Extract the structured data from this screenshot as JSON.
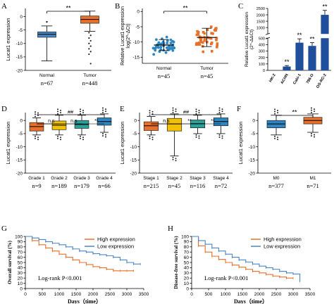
{
  "chart_data": [
    {
      "panel": "A",
      "type": "box",
      "ylabel": "Lucat1 expression",
      "categories": [
        "Normal",
        "Tumor"
      ],
      "n_labels": [
        "n=67",
        "n=448"
      ],
      "yticks": [
        0,
        -5,
        -10,
        -15,
        -20
      ],
      "ylim": [
        -20,
        3
      ],
      "boxes": [
        {
          "min": -16.5,
          "q1": -7.7,
          "median": -6.6,
          "q3": -5.7,
          "max": -3.5,
          "outliers_high": [
            -2.0
          ],
          "outliers_low": []
        },
        {
          "min": -5.5,
          "q1": -2.5,
          "median": -1.1,
          "q3": 0.2,
          "max": 2.0,
          "outliers_high": [],
          "outliers_low": [
            -6,
            -7,
            -8,
            -9,
            -10,
            -11,
            -12,
            -13,
            -14,
            -17.5
          ]
        }
      ],
      "box_colors": [
        "#4a86c5",
        "#e8702a"
      ],
      "significance": "**"
    },
    {
      "panel": "B",
      "type": "scatter",
      "ylabel_line1": "Relative Lucat1 expression",
      "ylabel_line2": "log(2^-ΔCt)",
      "categories": [
        "Normal",
        "Tumor"
      ],
      "n_labels": [
        "n=45",
        "n=45"
      ],
      "yticks": [
        0,
        -5,
        -10,
        -15
      ],
      "ylim": [
        -17,
        1
      ],
      "means": [
        -11.0,
        -8.5
      ],
      "sd": [
        1.8,
        3.0
      ],
      "colors": [
        "#2e86c1",
        "#e8702a"
      ],
      "significance": "**"
    },
    {
      "panel": "C",
      "type": "bar",
      "ylabel_line1": "Relative Lucat1 expression",
      "ylabel_line2": "(2^-ΔΔCt)",
      "categories": [
        "HK-2",
        "ACHN",
        "Caki-1",
        "786-O",
        "OS-RC-2"
      ],
      "values": [
        1,
        60,
        430,
        380,
        2000
      ],
      "errors": [
        0,
        15,
        60,
        50,
        350
      ],
      "yticks": [
        0,
        100,
        200,
        300,
        400,
        500,
        1000,
        1500,
        2000,
        2500
      ],
      "bar_color": "#1f4e9c",
      "marks": [
        "",
        "**",
        "**",
        "**",
        "**"
      ]
    },
    {
      "panel": "D",
      "type": "box",
      "ylabel": "Lucat1 expression",
      "categories": [
        "Grade 1",
        "Grade 2",
        "Grade 3",
        "Grade 4"
      ],
      "n_labels": [
        "n=9",
        "n=189",
        "n=179",
        "n=66"
      ],
      "yticks": [
        0,
        -5,
        -10,
        -15,
        -20
      ],
      "ylim": [
        -20,
        3
      ],
      "boxes": [
        {
          "min": -5.5,
          "q1": -4,
          "median": -2.3,
          "q3": -0.8,
          "max": 1.0
        },
        {
          "min": -5.5,
          "q1": -3.5,
          "median": -1.8,
          "q3": -0.2,
          "max": 2.0
        },
        {
          "min": -5.5,
          "q1": -3.0,
          "median": -1.5,
          "q3": 0,
          "max": 2.0
        },
        {
          "min": -4.5,
          "q1": -1.8,
          "median": -0.4,
          "q3": 1.0,
          "max": 2.5
        }
      ],
      "box_colors": [
        "#e8702a",
        "#f2c200",
        "#2aa198",
        "#2e86c1"
      ],
      "bracket_top": "##",
      "pair_labels": [
        "n.s",
        "n.s",
        "**"
      ]
    },
    {
      "panel": "E",
      "type": "box",
      "ylabel": "Lucat1 expression",
      "categories": [
        "Stage 1",
        "Stage 2",
        "Stage 3",
        "Stage 4"
      ],
      "n_labels": [
        "n=215",
        "n=45",
        "n=116",
        "n=72"
      ],
      "yticks": [
        0,
        -5,
        -10,
        -15,
        -20
      ],
      "ylim": [
        -20,
        3
      ],
      "boxes": [
        {
          "min": -5.5,
          "q1": -3.8,
          "median": -2.0,
          "q3": -0.5,
          "max": 1.5
        },
        {
          "min": -13.5,
          "q1": -4.0,
          "median": -1.3,
          "q3": 0.8,
          "max": 2.5
        },
        {
          "min": -5.0,
          "q1": -2.8,
          "median": -1.2,
          "q3": 0.2,
          "max": 2.0
        },
        {
          "min": -5.0,
          "q1": -2.0,
          "median": -0.4,
          "q3": 1.0,
          "max": 2.5
        }
      ],
      "box_colors": [
        "#e8702a",
        "#f2c200",
        "#2aa198",
        "#2e86c1"
      ],
      "bracket_top": "##",
      "pair_labels": [
        "n.s",
        "**",
        "**"
      ]
    },
    {
      "panel": "F",
      "type": "box",
      "ylabel": "Lucat1 expression",
      "categories": [
        "M0",
        "M1"
      ],
      "n_labels": [
        "n=377",
        "n=71"
      ],
      "yticks": [
        0,
        -5,
        -10,
        -15,
        -20
      ],
      "ylim": [
        -20,
        3
      ],
      "boxes": [
        {
          "min": -5.5,
          "q1": -2.8,
          "median": -1.3,
          "q3": 0.0,
          "max": 2.0
        },
        {
          "min": -4.5,
          "q1": -1.3,
          "median": 0.0,
          "q3": 1.2,
          "max": 2.5
        }
      ],
      "box_colors": [
        "#2e86c1",
        "#e8702a"
      ],
      "significance": "**"
    },
    {
      "panel": "G",
      "type": "line",
      "ylabel": "Overall survival (%)",
      "xlabel": "Days（time）",
      "xticks": [
        0,
        500,
        1000,
        1500,
        2000,
        2500,
        3000,
        3500
      ],
      "yticks": [
        0,
        10,
        20,
        30,
        40,
        50,
        60,
        70,
        80,
        90,
        100
      ],
      "annotation": "Log-rank P<0.001",
      "series": [
        {
          "name": "High expression",
          "color": "#e8702a",
          "x": [
            0,
            200,
            400,
            600,
            800,
            1000,
            1200,
            1400,
            1600,
            1800,
            2000,
            2200,
            2400,
            2600,
            2800,
            3000,
            3200
          ],
          "y": [
            100,
            92,
            84,
            78,
            72,
            66,
            60,
            55,
            50,
            46,
            42,
            40,
            37,
            34,
            34,
            34,
            34
          ]
        },
        {
          "name": "Low expression",
          "color": "#4a86c5",
          "x": [
            0,
            200,
            400,
            600,
            800,
            1000,
            1200,
            1400,
            1600,
            1800,
            2000,
            2200,
            2400,
            2600,
            2800,
            3000,
            3200,
            3400
          ],
          "y": [
            100,
            97,
            94,
            90,
            87,
            84,
            80,
            76,
            72,
            70,
            67,
            65,
            63,
            60,
            55,
            50,
            47,
            47
          ]
        }
      ]
    },
    {
      "panel": "H",
      "type": "line",
      "ylabel": "Disease-free survival (%)",
      "xlabel": "Days（time）",
      "xticks": [
        0,
        500,
        1000,
        1500,
        2000,
        2500,
        3000,
        3500
      ],
      "yticks": [
        0,
        10,
        20,
        30,
        40,
        50,
        60,
        70,
        80,
        90,
        100
      ],
      "annotation": "Log-rank P<0.001",
      "series": [
        {
          "name": "High expression",
          "color": "#e8702a",
          "x": [
            0,
            200,
            400,
            600,
            800,
            1000,
            1200,
            1400,
            1600,
            1800,
            2000,
            2200,
            2400,
            2600,
            2800,
            3000
          ],
          "y": [
            100,
            82,
            70,
            62,
            56,
            50,
            45,
            41,
            37,
            33,
            30,
            27,
            24,
            22,
            20,
            20
          ]
        },
        {
          "name": "Low expression",
          "color": "#4a86c5",
          "x": [
            0,
            200,
            400,
            600,
            800,
            1000,
            1200,
            1400,
            1600,
            1800,
            2000,
            2200,
            2400,
            2600,
            2800,
            3000,
            3200
          ],
          "y": [
            100,
            92,
            85,
            78,
            72,
            66,
            60,
            55,
            51,
            47,
            43,
            40,
            37,
            33,
            30,
            28,
            14
          ]
        }
      ]
    }
  ]
}
